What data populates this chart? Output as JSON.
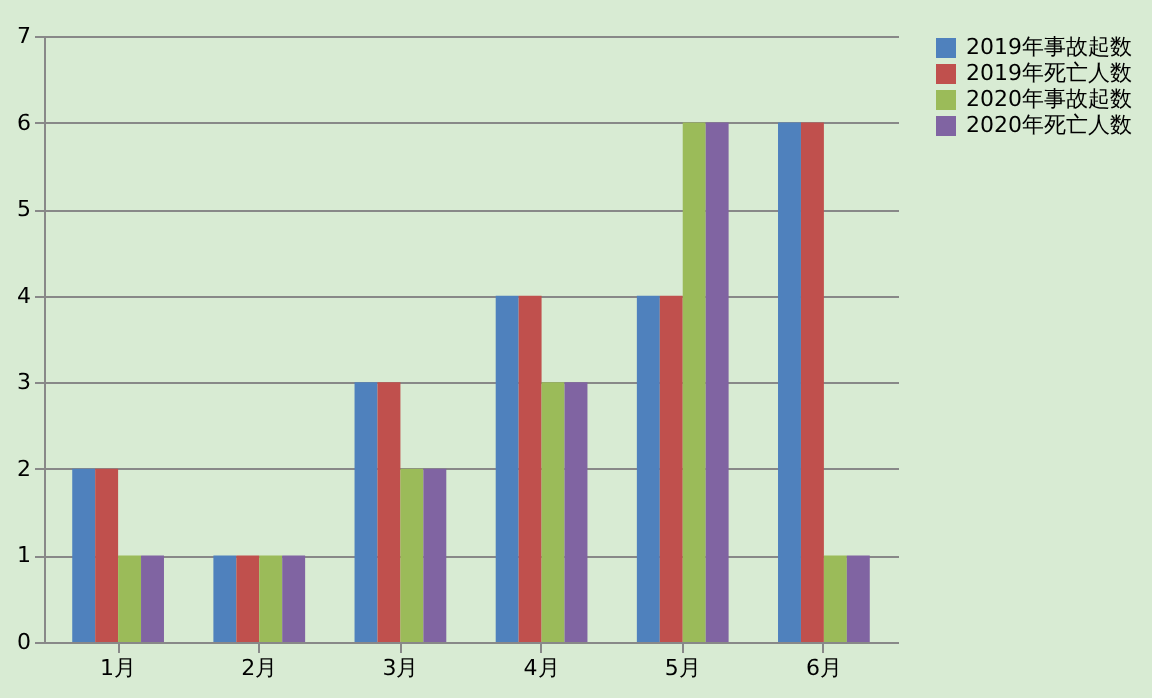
{
  "chart_data": {
    "type": "bar",
    "categories": [
      "1月",
      "2月",
      "3月",
      "4月",
      "5月",
      "6月"
    ],
    "series": [
      {
        "name": "2019年事故起数",
        "color": "#4f81bd",
        "values": [
          2,
          1,
          3,
          4,
          4,
          6
        ]
      },
      {
        "name": "2019年死亡人数",
        "color": "#c0504d",
        "values": [
          2,
          1,
          3,
          4,
          4,
          6
        ]
      },
      {
        "name": "2020年事故起数",
        "color": "#9bbb59",
        "values": [
          1,
          1,
          2,
          3,
          6,
          1
        ]
      },
      {
        "name": "2020年死亡人数",
        "color": "#8064a2",
        "values": [
          1,
          1,
          2,
          3,
          6,
          1
        ]
      }
    ],
    "ylim": [
      0,
      7
    ],
    "yticks": [
      0,
      1,
      2,
      3,
      4,
      5,
      6,
      7
    ],
    "grid": "y",
    "legend": "right"
  }
}
